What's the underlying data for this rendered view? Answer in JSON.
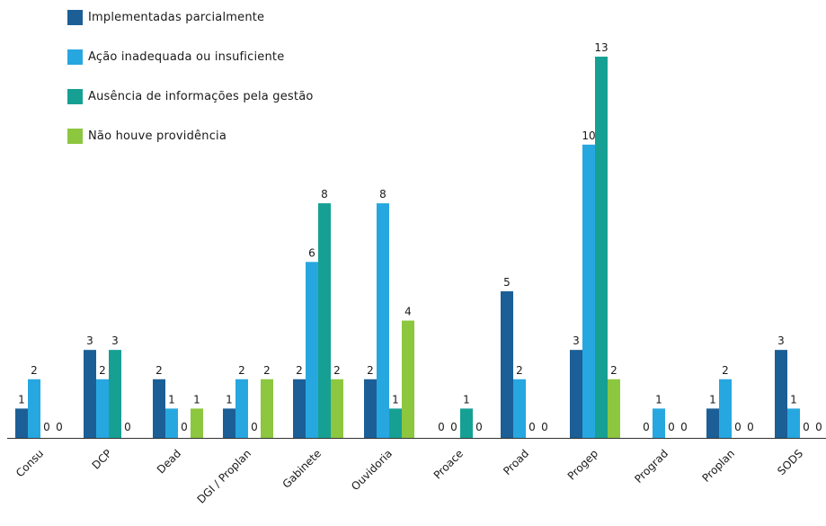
{
  "chart_data": {
    "type": "bar",
    "categories": [
      "Consu",
      "DCP",
      "Dead",
      "DGI / Proplan",
      "Gabinete",
      "Ouvidoria",
      "Proace",
      "Proad",
      "Progep",
      "Prograd",
      "Proplan",
      "SODS"
    ],
    "series": [
      {
        "name": "Implementadas parcialmente",
        "color": "#1c5f96",
        "values": [
          1,
          3,
          2,
          1,
          2,
          2,
          0,
          5,
          3,
          0,
          1,
          3
        ]
      },
      {
        "name": "Ação inadequada ou insuficiente",
        "color": "#27a7e0",
        "values": [
          2,
          2,
          1,
          2,
          6,
          8,
          0,
          2,
          10,
          1,
          2,
          1
        ]
      },
      {
        "name": "Ausência de informações pela gestão",
        "color": "#16a094",
        "values": [
          0,
          3,
          0,
          0,
          8,
          1,
          1,
          0,
          13,
          0,
          0,
          0
        ]
      },
      {
        "name": "Não houve providência",
        "color": "#8dc63f",
        "values": [
          0,
          0,
          1,
          2,
          2,
          4,
          0,
          0,
          2,
          0,
          0,
          0
        ]
      }
    ],
    "ylim": [
      0,
      13
    ],
    "legend_position": "top-left",
    "grid": false
  }
}
